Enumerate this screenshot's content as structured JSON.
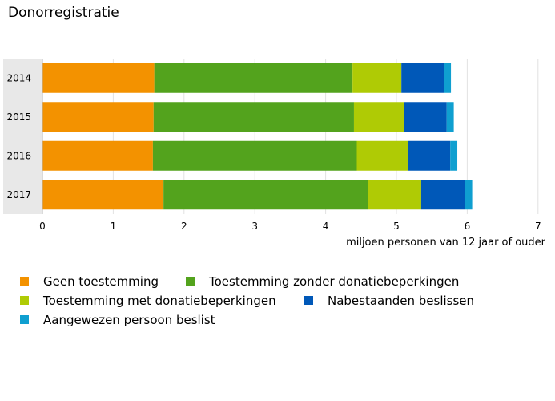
{
  "chart_data": {
    "type": "bar",
    "orientation": "horizontal",
    "stacked": true,
    "title": "Donorregistratie",
    "xlabel": "miljoen personen van 12 jaar of ouder",
    "ylabel": "",
    "xlim": [
      0,
      7
    ],
    "xticks": [
      0,
      1,
      2,
      3,
      4,
      5,
      6,
      7
    ],
    "grid": true,
    "legend_position": "bottom",
    "categories": [
      "2014",
      "2015",
      "2016",
      "2017"
    ],
    "series": [
      {
        "name": "Geen toestemming",
        "color": "#f39200",
        "values": [
          1.58,
          1.57,
          1.56,
          1.71
        ]
      },
      {
        "name": "Toestemming zonder donatiebeperkingen",
        "color": "#53a31d",
        "values": [
          2.8,
          2.83,
          2.88,
          2.89
        ]
      },
      {
        "name": "Toestemming met donatiebeperkingen",
        "color": "#afcb05",
        "values": [
          0.69,
          0.71,
          0.72,
          0.75
        ]
      },
      {
        "name": "Nabestaanden beslissen",
        "color": "#0058b8",
        "values": [
          0.6,
          0.6,
          0.6,
          0.62
        ]
      },
      {
        "name": "Aangewezen persoon beslist",
        "color": "#0f9fd0",
        "values": [
          0.1,
          0.1,
          0.1,
          0.1
        ]
      }
    ]
  }
}
